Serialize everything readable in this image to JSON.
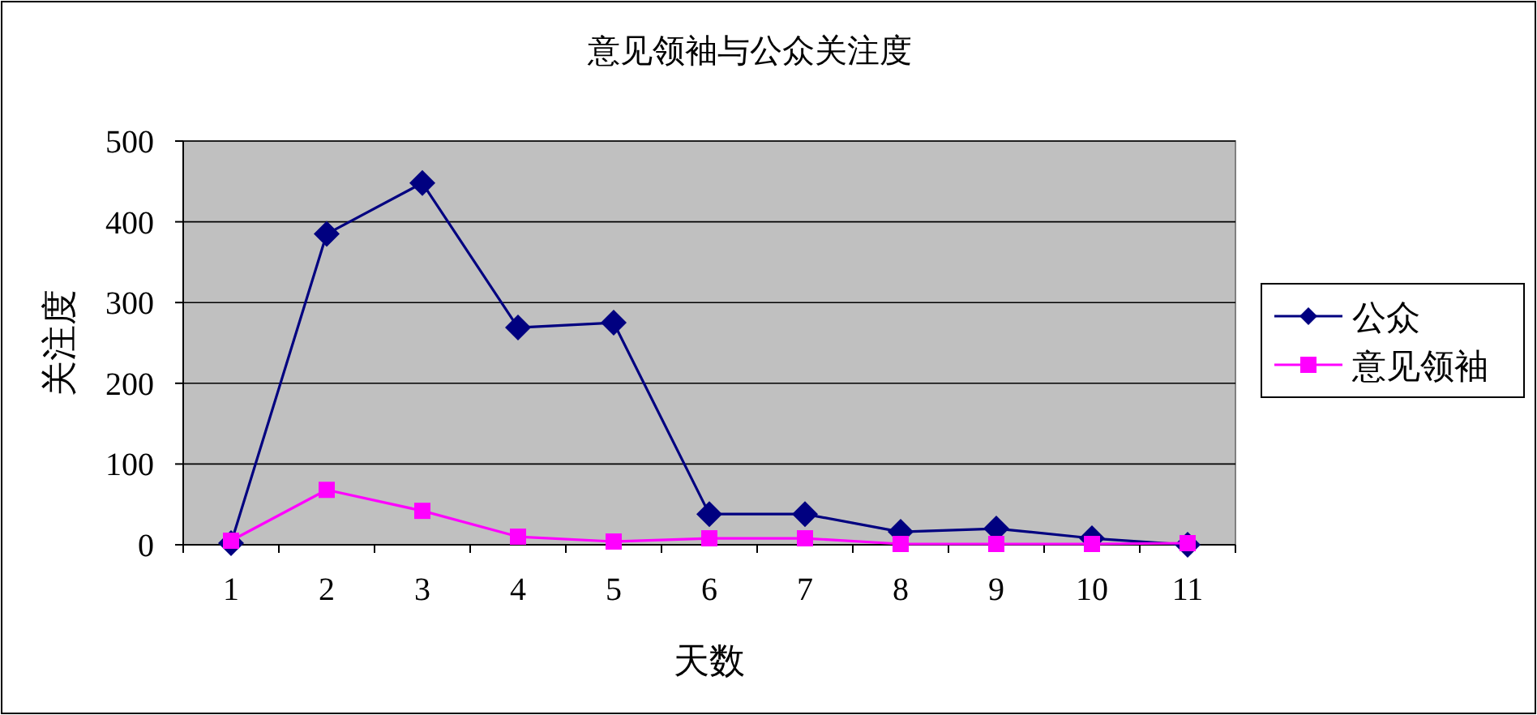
{
  "chart_data": {
    "type": "line",
    "title": "意见领袖与公众关注度",
    "xlabel": "天数",
    "ylabel": "关注度",
    "categories": [
      "1",
      "2",
      "3",
      "4",
      "5",
      "6",
      "7",
      "8",
      "9",
      "10",
      "11"
    ],
    "series": [
      {
        "name": "公众",
        "color": "#000080",
        "marker": "diamond",
        "values": [
          2,
          385,
          448,
          269,
          275,
          38,
          38,
          16,
          20,
          8,
          0
        ]
      },
      {
        "name": "意见领袖",
        "color": "#ff00ff",
        "marker": "square",
        "values": [
          5,
          68,
          42,
          10,
          4,
          8,
          8,
          1,
          1,
          1,
          2
        ]
      }
    ],
    "ylim": [
      0,
      500
    ],
    "yticks": [
      0,
      100,
      200,
      300,
      400,
      500
    ],
    "grid": "y",
    "legend": "right"
  }
}
